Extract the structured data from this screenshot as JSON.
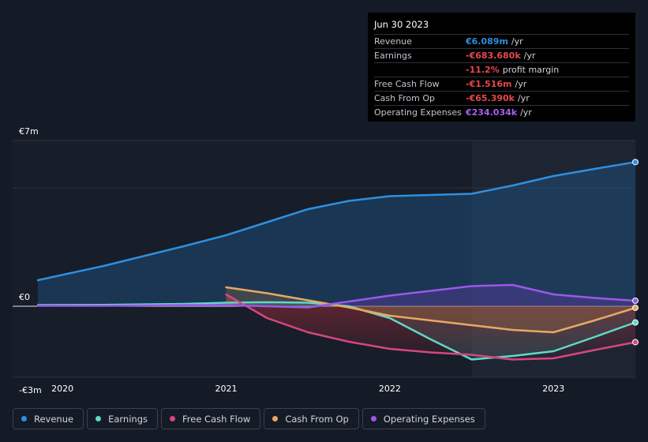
{
  "chart_data": {
    "type": "area",
    "title": "",
    "y_axis": {
      "ylim": [
        -3,
        7
      ],
      "unit": "€m",
      "tick_labels": [
        {
          "value": 7,
          "label": "€7m"
        },
        {
          "value": 0,
          "label": "€0"
        },
        {
          "value": -3,
          "label": "-€3m"
        }
      ]
    },
    "x_axis": {
      "xlim": [
        2019.85,
        2023.5
      ],
      "tick_labels": [
        "2020",
        "2021",
        "2022",
        "2023"
      ]
    },
    "highlight_from": 2022.5,
    "series": [
      {
        "name": "Revenue",
        "color": "#2e8fe0",
        "fill": true,
        "points": [
          [
            2019.85,
            1.1
          ],
          [
            2020.25,
            1.7
          ],
          [
            2020.75,
            2.55
          ],
          [
            2021.0,
            3.0
          ],
          [
            2021.25,
            3.55
          ],
          [
            2021.5,
            4.1
          ],
          [
            2021.75,
            4.45
          ],
          [
            2022.0,
            4.65
          ],
          [
            2022.25,
            4.7
          ],
          [
            2022.5,
            4.75
          ],
          [
            2022.75,
            5.1
          ],
          [
            2023.0,
            5.5
          ],
          [
            2023.25,
            5.8
          ],
          [
            2023.5,
            6.089
          ]
        ]
      },
      {
        "name": "Earnings",
        "color": "#5fd8c8",
        "fill": true,
        "points": [
          [
            2019.85,
            0.05
          ],
          [
            2020.25,
            0.06
          ],
          [
            2020.75,
            0.1
          ],
          [
            2021.0,
            0.15
          ],
          [
            2021.25,
            0.17
          ],
          [
            2021.5,
            0.15
          ],
          [
            2021.75,
            0.0
          ],
          [
            2022.0,
            -0.5
          ],
          [
            2022.25,
            -1.4
          ],
          [
            2022.5,
            -2.25
          ],
          [
            2022.75,
            -2.1
          ],
          [
            2023.0,
            -1.9
          ],
          [
            2023.25,
            -1.3
          ],
          [
            2023.5,
            -0.684
          ]
        ]
      },
      {
        "name": "Free Cash Flow",
        "color": "#d6467f",
        "fill": true,
        "points": [
          [
            2021.0,
            0.5
          ],
          [
            2021.25,
            -0.5
          ],
          [
            2021.5,
            -1.1
          ],
          [
            2021.75,
            -1.5
          ],
          [
            2022.0,
            -1.8
          ],
          [
            2022.25,
            -1.95
          ],
          [
            2022.5,
            -2.05
          ],
          [
            2022.75,
            -2.25
          ],
          [
            2023.0,
            -2.2
          ],
          [
            2023.25,
            -1.85
          ],
          [
            2023.5,
            -1.516
          ]
        ]
      },
      {
        "name": "Cash From Op",
        "color": "#e8a864",
        "fill": true,
        "points": [
          [
            2021.0,
            0.8
          ],
          [
            2021.25,
            0.55
          ],
          [
            2021.5,
            0.25
          ],
          [
            2021.75,
            -0.05
          ],
          [
            2022.0,
            -0.4
          ],
          [
            2022.25,
            -0.6
          ],
          [
            2022.5,
            -0.8
          ],
          [
            2022.75,
            -1.0
          ],
          [
            2023.0,
            -1.1
          ],
          [
            2023.25,
            -0.6
          ],
          [
            2023.5,
            -0.065
          ]
        ]
      },
      {
        "name": "Operating Expenses",
        "color": "#9c58e8",
        "fill": true,
        "points": [
          [
            2019.85,
            0.02
          ],
          [
            2020.25,
            0.02
          ],
          [
            2020.75,
            0.05
          ],
          [
            2021.0,
            0.05
          ],
          [
            2021.25,
            0.0
          ],
          [
            2021.5,
            -0.05
          ],
          [
            2021.75,
            0.2
          ],
          [
            2022.0,
            0.45
          ],
          [
            2022.25,
            0.65
          ],
          [
            2022.5,
            0.85
          ],
          [
            2022.75,
            0.9
          ],
          [
            2023.0,
            0.5
          ],
          [
            2023.25,
            0.35
          ],
          [
            2023.5,
            0.234
          ]
        ]
      }
    ]
  },
  "tooltip": {
    "date": "Jun 30 2023",
    "rows": [
      {
        "label": "Revenue",
        "value": "€6.089m",
        "unit": "/yr",
        "color": "#2e8fe0"
      },
      {
        "label": "Earnings",
        "value": "-€683.680k",
        "unit": "/yr",
        "color": "#e5484d"
      },
      {
        "label": "",
        "value": "-11.2%",
        "unit": "profit margin",
        "color": "#e5484d"
      },
      {
        "label": "Free Cash Flow",
        "value": "-€1.516m",
        "unit": "/yr",
        "color": "#e5484d"
      },
      {
        "label": "Cash From Op",
        "value": "-€65.390k",
        "unit": "/yr",
        "color": "#e5484d"
      },
      {
        "label": "Operating Expenses",
        "value": "€234.034k",
        "unit": "/yr",
        "color": "#a561f0"
      }
    ]
  },
  "legend": [
    {
      "label": "Revenue",
      "color": "#2e8fe0"
    },
    {
      "label": "Earnings",
      "color": "#5fd8c8"
    },
    {
      "label": "Free Cash Flow",
      "color": "#d6467f"
    },
    {
      "label": "Cash From Op",
      "color": "#e8a864"
    },
    {
      "label": "Operating Expenses",
      "color": "#9c58e8"
    }
  ]
}
